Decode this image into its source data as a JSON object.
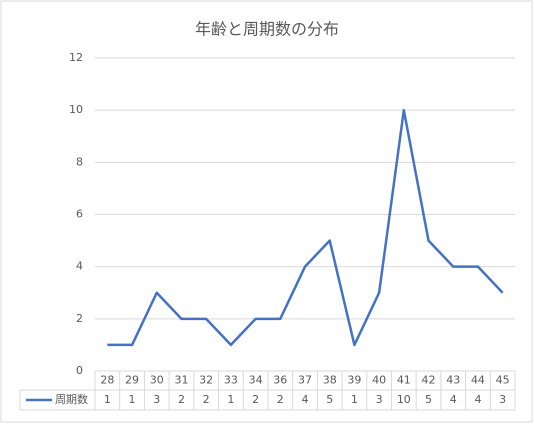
{
  "chart_data": {
    "type": "line",
    "title": "年齢と周期数の分布",
    "categories": [
      "28",
      "29",
      "30",
      "31",
      "32",
      "33",
      "34",
      "36",
      "37",
      "38",
      "39",
      "40",
      "41",
      "42",
      "43",
      "44",
      "45"
    ],
    "series": [
      {
        "name": "周期数",
        "color": "#4472c4",
        "values": [
          1,
          1,
          3,
          2,
          2,
          1,
          2,
          2,
          4,
          5,
          1,
          3,
          10,
          5,
          4,
          4,
          3
        ]
      }
    ],
    "ylim": [
      0,
      12
    ],
    "yticks": [
      0,
      2,
      4,
      6,
      8,
      10,
      12
    ],
    "grid": true,
    "data_table": true
  }
}
